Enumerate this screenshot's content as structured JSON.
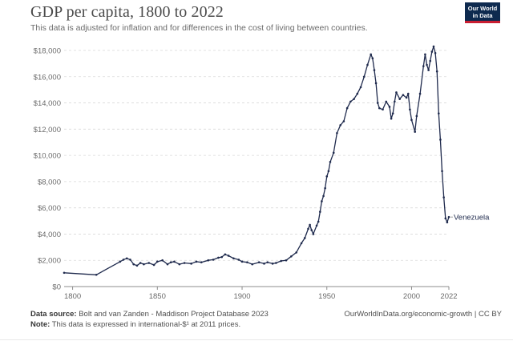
{
  "title": "GDP per capita, 1800 to 2022",
  "subtitle": "This data is adjusted for inflation and for differences in the cost of living between countries.",
  "logo": {
    "line1": "Our World",
    "line2": "in Data"
  },
  "footer": {
    "source_label": "Data source:",
    "source_text": "Bolt and van Zanden - Maddison Project Database 2023",
    "note_label": "Note:",
    "note_text": "This data is expressed in international-$¹ at 2011 prices.",
    "link": "OurWorldInData.org/economic-growth | CC BY"
  },
  "colors": {
    "line": "#1f2a4d",
    "grid": "#d9d9d9",
    "logo_bg": "#0e2a4f",
    "logo_accent": "#c91e32"
  },
  "chart_data": {
    "type": "line",
    "title": "GDP per capita, 1800 to 2022",
    "xlabel": "",
    "ylabel": "",
    "xlim": [
      1795,
      2022
    ],
    "ylim": [
      0,
      18000
    ],
    "x_ticks": [
      "1800",
      "1850",
      "1900",
      "1950",
      "2000",
      "2022"
    ],
    "x_tick_values": [
      1800,
      1850,
      1900,
      1950,
      2000,
      2022
    ],
    "y_ticks": [
      "$0",
      "$2,000",
      "$4,000",
      "$6,000",
      "$8,000",
      "$10,000",
      "$12,000",
      "$14,000",
      "$16,000",
      "$18,000"
    ],
    "y_tick_values": [
      0,
      2000,
      4000,
      6000,
      8000,
      10000,
      12000,
      14000,
      16000,
      18000
    ],
    "grid": true,
    "series": [
      {
        "name": "Venezuela",
        "x": [
          1795,
          1814,
          1828,
          1830,
          1832,
          1834,
          1836,
          1838,
          1840,
          1842,
          1845,
          1848,
          1850,
          1853,
          1856,
          1858,
          1860,
          1863,
          1866,
          1870,
          1873,
          1876,
          1880,
          1883,
          1886,
          1888,
          1890,
          1892,
          1895,
          1898,
          1900,
          1903,
          1906,
          1910,
          1913,
          1915,
          1918,
          1920,
          1923,
          1926,
          1929,
          1932,
          1935,
          1937,
          1939,
          1940,
          1941,
          1942,
          1944,
          1945,
          1946,
          1947,
          1948,
          1949,
          1950,
          1951,
          1952,
          1954,
          1956,
          1958,
          1960,
          1962,
          1964,
          1966,
          1968,
          1970,
          1972,
          1974,
          1976,
          1977,
          1978,
          1979,
          1980,
          1981,
          1983,
          1985,
          1987,
          1988,
          1989,
          1990,
          1991,
          1993,
          1995,
          1997,
          1998,
          1999,
          2000,
          2002,
          2003,
          2005,
          2007,
          2008,
          2009,
          2010,
          2011,
          2012,
          2013,
          2014,
          2015,
          2016,
          2017,
          2018,
          2019,
          2020,
          2021,
          2022
        ],
        "values": [
          1050,
          900,
          1900,
          2050,
          2150,
          2050,
          1700,
          1600,
          1800,
          1700,
          1800,
          1650,
          1900,
          2000,
          1700,
          1850,
          1900,
          1700,
          1800,
          1750,
          1900,
          1850,
          2000,
          2050,
          2200,
          2250,
          2450,
          2350,
          2150,
          2050,
          1900,
          1850,
          1700,
          1850,
          1750,
          1850,
          1750,
          1800,
          1950,
          2000,
          2300,
          2600,
          3300,
          3700,
          4400,
          4700,
          4300,
          4000,
          4650,
          4950,
          5700,
          6500,
          6900,
          7500,
          8400,
          8800,
          9500,
          10200,
          11700,
          12300,
          12600,
          13600,
          14100,
          14300,
          14700,
          15200,
          16000,
          16900,
          17700,
          17400,
          16500,
          15500,
          14000,
          13600,
          13500,
          14100,
          13700,
          12800,
          13200,
          14100,
          14800,
          14300,
          14600,
          14400,
          14700,
          13500,
          12700,
          11800,
          13000,
          14700,
          16800,
          17700,
          16900,
          16500,
          17200,
          17900,
          18300,
          17800,
          16400,
          13200,
          11200,
          8800,
          6800,
          5200,
          4900,
          5300
        ]
      }
    ]
  }
}
